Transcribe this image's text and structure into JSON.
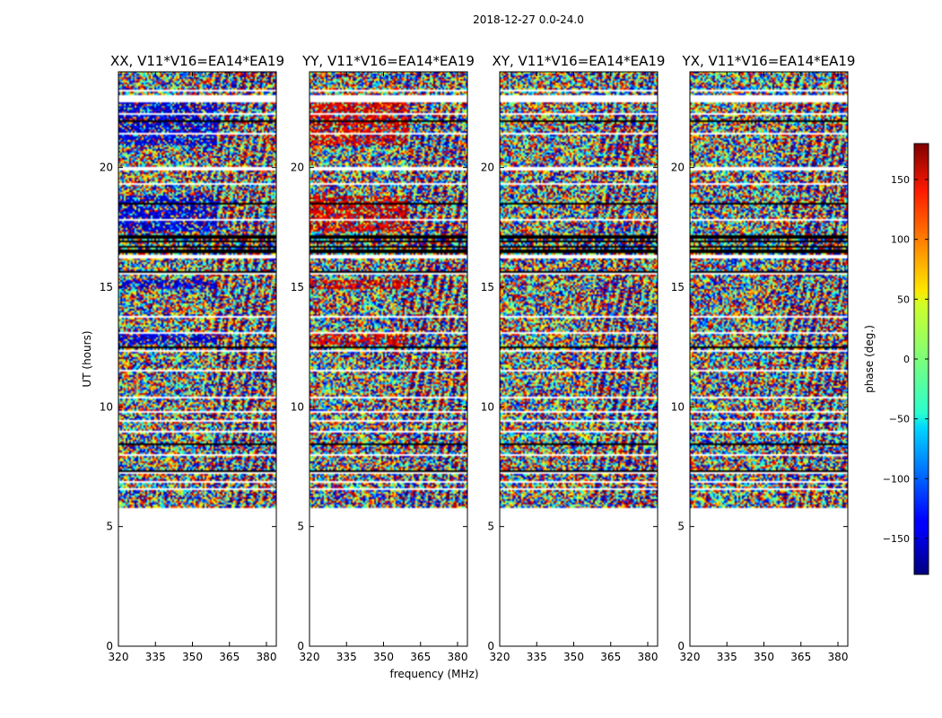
{
  "figure": {
    "suptitle": "2018-12-27 0.0-24.0"
  },
  "chart_data": {
    "type": "heatmap",
    "panels": [
      {
        "title": "XX, V11*V16=EA14*EA19",
        "polarization": "XX"
      },
      {
        "title": "YY, V11*V16=EA14*EA19",
        "polarization": "YY"
      },
      {
        "title": "XY, V11*V16=EA14*EA19",
        "polarization": "XY"
      },
      {
        "title": "YX, V11*V16=EA14*EA19",
        "polarization": "YX"
      }
    ],
    "xlabel": "frequency (MHz)",
    "ylabel": "UT (hours)",
    "xticks": [
      320,
      335,
      350,
      365,
      380
    ],
    "yticks": [
      0,
      5,
      10,
      15,
      20
    ],
    "xlim": [
      320,
      384
    ],
    "ylim": [
      0,
      24
    ],
    "data_start_ut": 5.6,
    "colorbar": {
      "label": "phase (deg.)",
      "ticks": [
        150,
        100,
        50,
        0,
        -50,
        -100,
        -150
      ],
      "range": [
        -180,
        180
      ],
      "colormap": "jet"
    },
    "dominant_phase": {
      "XX": -150,
      "YY": 150
    },
    "data_gaps_ut": [
      [
        5.6,
        5.75
      ],
      [
        6.55,
        6.6
      ],
      [
        6.85,
        6.9
      ],
      [
        7.2,
        7.3
      ],
      [
        7.95,
        8.0
      ],
      [
        8.45,
        8.5
      ],
      [
        8.95,
        9.0
      ],
      [
        9.4,
        9.45
      ],
      [
        9.75,
        9.85
      ],
      [
        10.35,
        10.45
      ],
      [
        11.5,
        11.55
      ],
      [
        12.3,
        12.35
      ],
      [
        13.05,
        13.15
      ],
      [
        13.75,
        13.8
      ],
      [
        14.45,
        14.5
      ],
      [
        15.55,
        15.6
      ],
      [
        16.2,
        16.35
      ],
      [
        17.8,
        17.85
      ],
      [
        18.2,
        18.25
      ],
      [
        18.8,
        18.85
      ],
      [
        19.3,
        19.35
      ],
      [
        19.9,
        20.0
      ],
      [
        20.9,
        20.95
      ],
      [
        21.35,
        21.45
      ],
      [
        22.2,
        22.3
      ],
      [
        22.7,
        23.0
      ],
      [
        23.2,
        23.25
      ]
    ],
    "flagged_bands_ut": [
      [
        7.25,
        7.35
      ],
      [
        8.4,
        8.45
      ],
      [
        9.05,
        9.1
      ],
      [
        11.6,
        11.65
      ],
      [
        12.45,
        12.5
      ],
      [
        15.6,
        15.7
      ],
      [
        16.45,
        16.55
      ],
      [
        16.65,
        16.75
      ],
      [
        16.85,
        16.95
      ],
      [
        17.05,
        17.15
      ],
      [
        17.3,
        17.35
      ],
      [
        18.45,
        18.5
      ],
      [
        21.9,
        21.95
      ]
    ]
  }
}
